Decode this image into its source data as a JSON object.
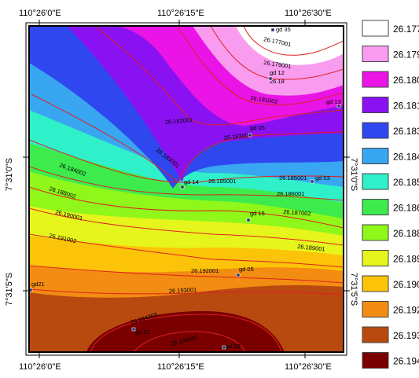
{
  "top_coords": [
    "110°26'0\"E",
    "110°26'15\"E",
    "110°26'30\"E"
  ],
  "bottom_coords": [
    "110°26'0\"E",
    "110°26'15\"E",
    "110°26'30\"E"
  ],
  "left_coords": [
    "7°31'0\"S",
    "7°31'5\"S"
  ],
  "right_coords": [
    "7°31'0\"S",
    "7°31'5\"S"
  ],
  "zones": [
    {
      "name": "26.194",
      "color": "#7a0000"
    },
    {
      "name": "26.193",
      "color": "#b84a10"
    },
    {
      "name": "26.192",
      "color": "#f28c12"
    },
    {
      "name": "26.190",
      "color": "#fcc408"
    },
    {
      "name": "26.189",
      "color": "#e6f51c"
    },
    {
      "name": "26.188",
      "color": "#8ff71a"
    },
    {
      "name": "26.186",
      "color": "#3deb4c"
    },
    {
      "name": "26.185",
      "color": "#2ff0c8"
    },
    {
      "name": "26.184",
      "color": "#38a6f0"
    },
    {
      "name": "26.183",
      "color": "#2f47ef"
    },
    {
      "name": "26.181",
      "color": "#8a12f2"
    },
    {
      "name": "26.180",
      "color": "#ea14e6"
    },
    {
      "name": "26.179",
      "color": "#f99cf0"
    },
    {
      "name": "26.177",
      "color": "#ffffff"
    }
  ],
  "legend": [
    {
      "label": "26.177",
      "color": "#ffffff"
    },
    {
      "label": "26.179",
      "color": "#f99cf0"
    },
    {
      "label": "26.180",
      "color": "#ea14e6"
    },
    {
      "label": "26.181",
      "color": "#8a12f2"
    },
    {
      "label": "26.183",
      "color": "#2f47ef"
    },
    {
      "label": "26.184",
      "color": "#38a6f0"
    },
    {
      "label": "26.185",
      "color": "#2ff0c8"
    },
    {
      "label": "26.186",
      "color": "#3deb4c"
    },
    {
      "label": "26.188",
      "color": "#8ff71a"
    },
    {
      "label": "26.189",
      "color": "#e6f51c"
    },
    {
      "label": "26.190",
      "color": "#fcc408"
    },
    {
      "label": "26.192",
      "color": "#f28c12"
    },
    {
      "label": "26.193",
      "color": "#b84a10"
    },
    {
      "label": "26.194",
      "color": "#7a0000"
    }
  ],
  "contour_labels": [
    "26.177001",
    "26.179001",
    "26.18",
    "26.181002",
    "26.182001",
    "26.183001",
    "26.183001",
    "26.184002",
    "26.185001",
    "26.185001",
    "26.186001",
    "26.187002",
    "26.188002",
    "26.189001",
    "26.190001",
    "26.191002",
    "26.192001",
    "26.193001",
    "26.194203",
    "26.195002"
  ],
  "points": [
    {
      "label": "gd 35"
    },
    {
      "label": "gd 12"
    },
    {
      "label": "gd 13"
    },
    {
      "label": "gd 05"
    },
    {
      "label": "gd 14"
    },
    {
      "label": "gd 03"
    },
    {
      "label": "gd 15"
    },
    {
      "label": "gd 05"
    },
    {
      "label": "gd21"
    },
    {
      "label": "gd 22"
    },
    {
      "label": "gd 23"
    }
  ],
  "colors": {
    "contour": "#e02020",
    "neatline": "#000000",
    "point": "#1a2a6a"
  }
}
